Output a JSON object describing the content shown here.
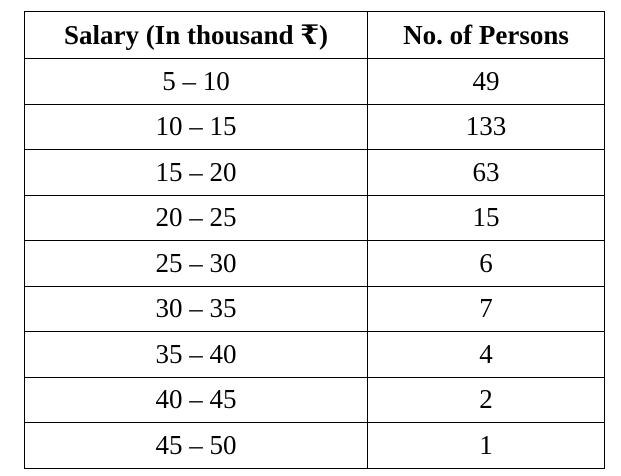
{
  "table": {
    "headers": {
      "salary": "Salary (In thousand ₹)",
      "persons": "No. of Persons"
    },
    "rows": [
      {
        "salary": "5 – 10",
        "persons": "49"
      },
      {
        "salary": "10 – 15",
        "persons": "133"
      },
      {
        "salary": "15 – 20",
        "persons": "63"
      },
      {
        "salary": "20 – 25",
        "persons": "15"
      },
      {
        "salary": "25 – 30",
        "persons": "6"
      },
      {
        "salary": "30 – 35",
        "persons": "7"
      },
      {
        "salary": "35 – 40",
        "persons": "4"
      },
      {
        "salary": "40 – 45",
        "persons": "2"
      },
      {
        "salary": "45 – 50",
        "persons": "1"
      }
    ]
  }
}
